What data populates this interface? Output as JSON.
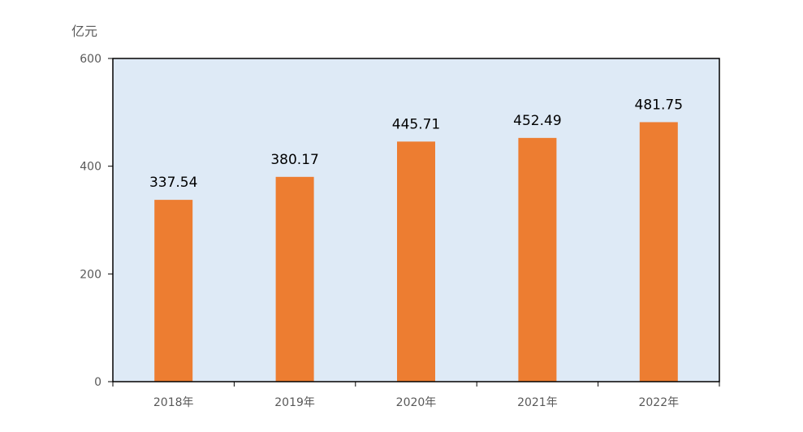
{
  "chart_data": {
    "type": "bar",
    "unit": "亿元",
    "categories": [
      "2018年",
      "2019年",
      "2020年",
      "2021年",
      "2022年"
    ],
    "values": [
      337.54,
      380.17,
      445.71,
      452.49,
      481.75
    ],
    "data_labels": [
      "337.54",
      "380.17",
      "445.71",
      "452.49",
      "481.75"
    ],
    "ylim": [
      0,
      600
    ],
    "yticks": [
      0,
      200,
      400,
      600
    ],
    "ytick_labels": [
      "0",
      "200",
      "400",
      "600"
    ],
    "grid": false,
    "legend": "none",
    "colors": {
      "bar": "#ED7D31",
      "plot_background": "#DEEAF6",
      "axis": "#000000",
      "tick_text": "#595959"
    }
  }
}
